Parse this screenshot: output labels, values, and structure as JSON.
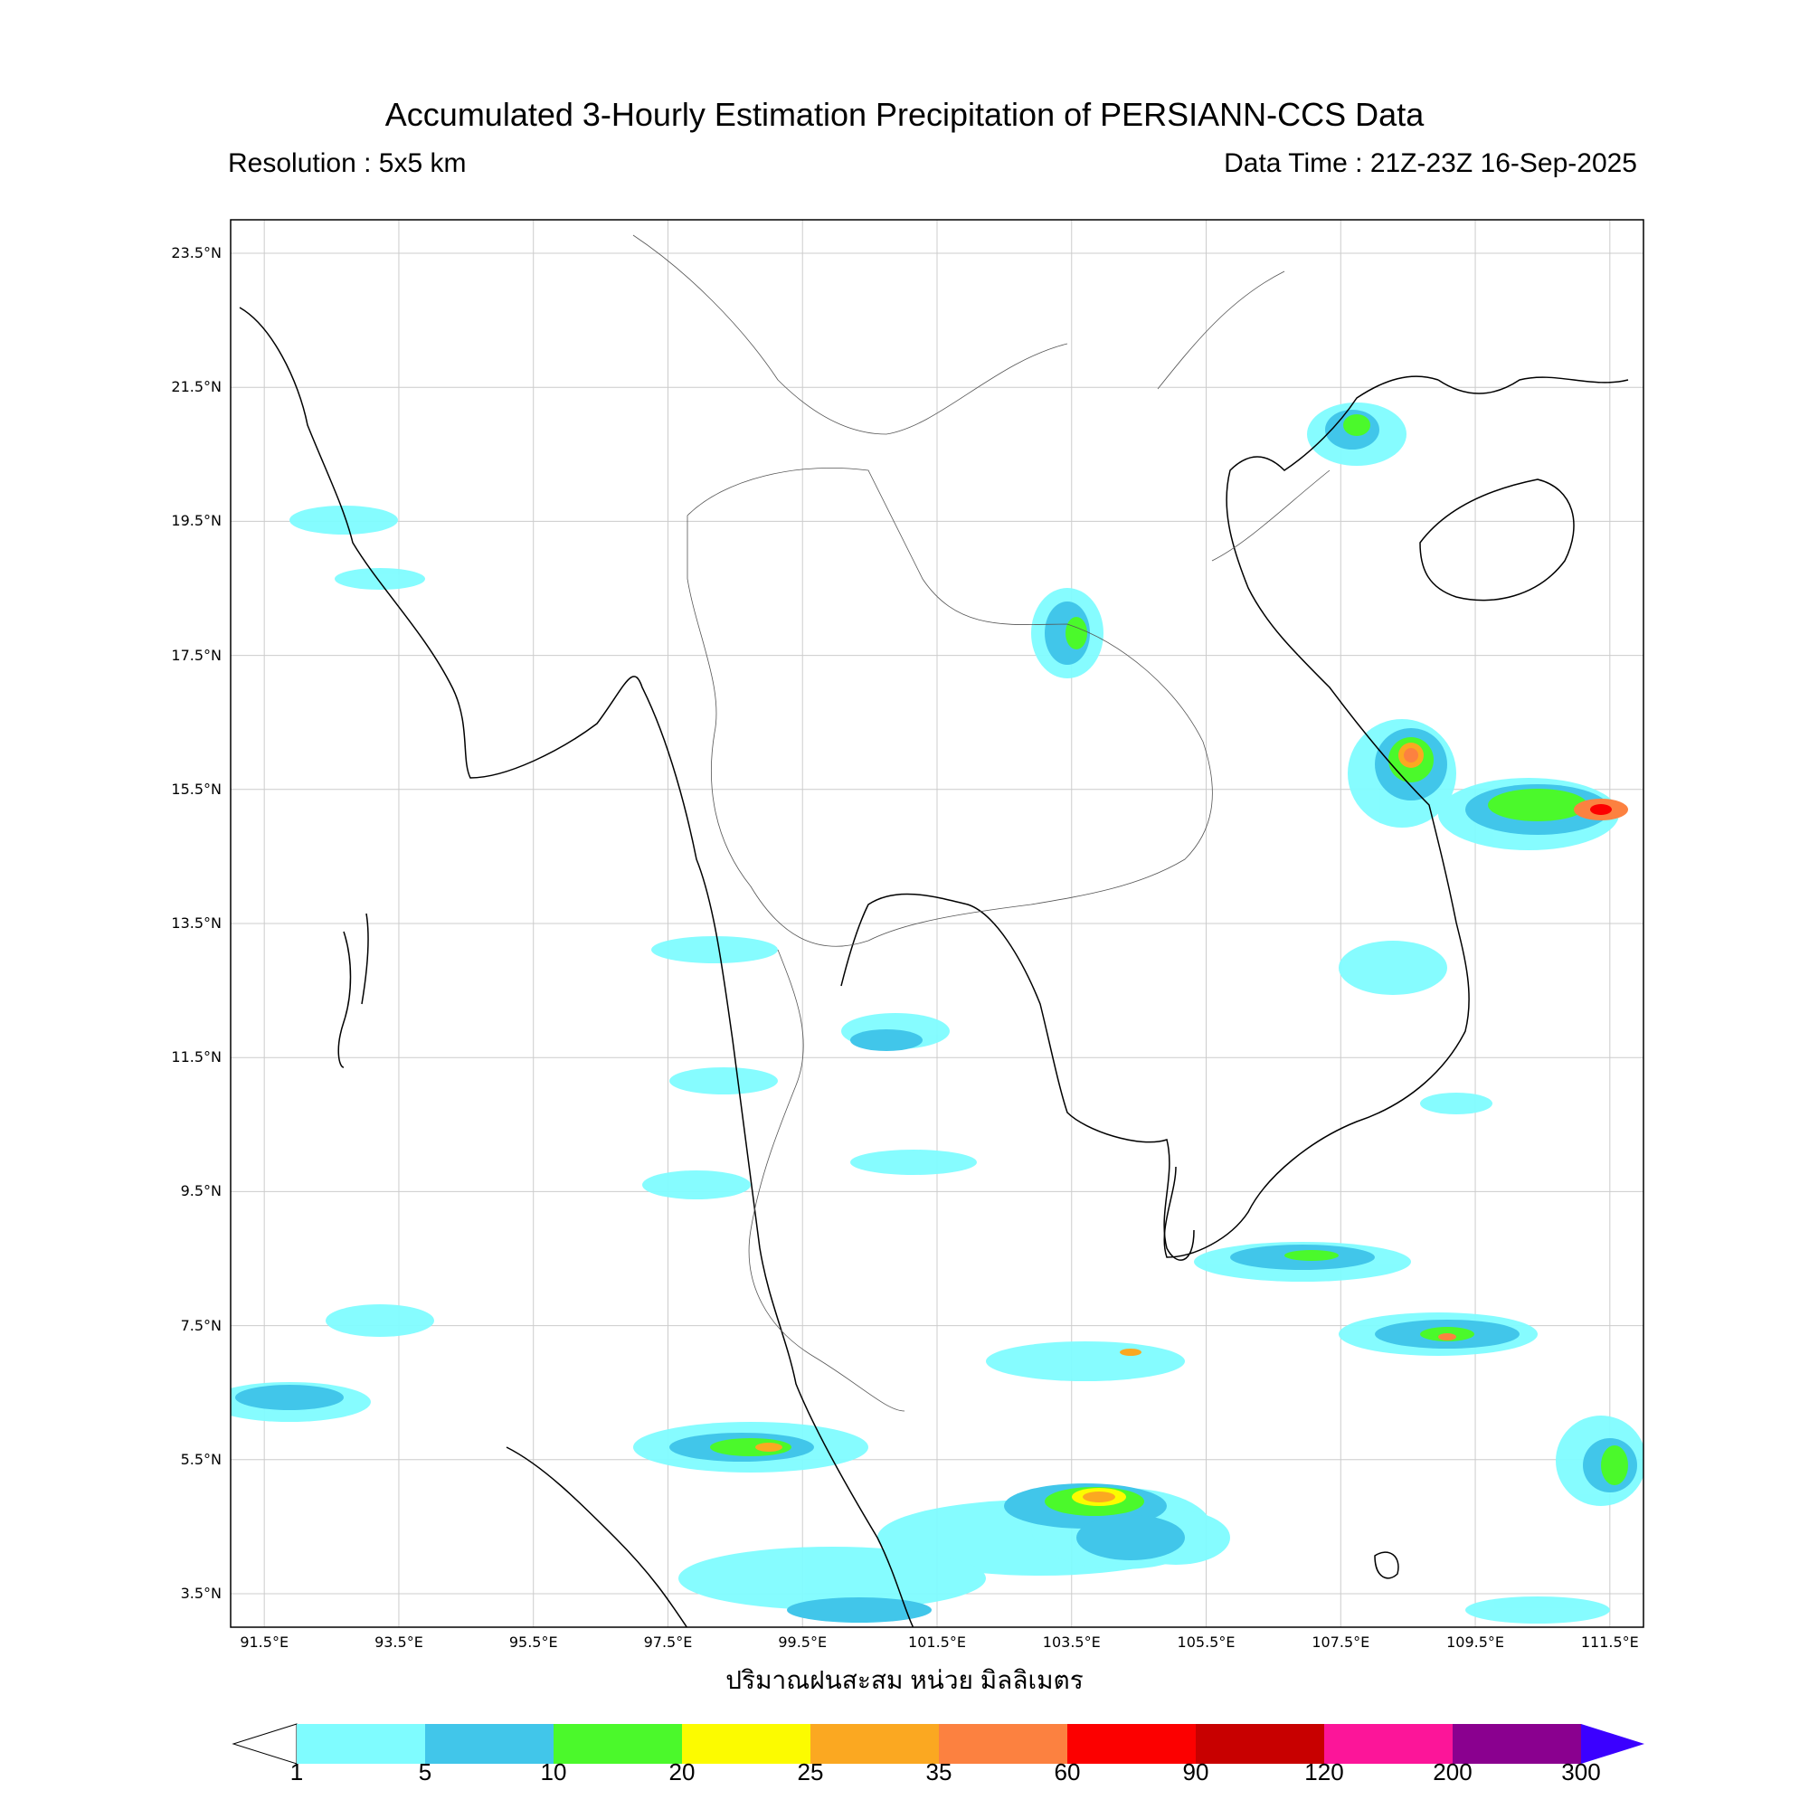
{
  "header": {
    "title": "Accumulated 3-Hourly Estimation Precipitation of PERSIANN-CCS Data",
    "resolution": "Resolution : 5x5 km",
    "data_time": "Data Time : 21Z-23Z 16-Sep-2025"
  },
  "axes": {
    "lat_ticks": [
      "23.5°N",
      "21.5°N",
      "19.5°N",
      "17.5°N",
      "15.5°N",
      "13.5°N",
      "11.5°N",
      "9.5°N",
      "7.5°N",
      "5.5°N",
      "3.5°N"
    ],
    "lon_ticks": [
      "91.5°E",
      "93.5°E",
      "95.5°E",
      "97.5°E",
      "99.5°E",
      "101.5°E",
      "103.5°E",
      "105.5°E",
      "107.5°E",
      "109.5°E",
      "111.5°E"
    ],
    "xlabel": "ปริมาณฝนสะสม หน่วย มิลลิเมตร"
  },
  "colorbar": {
    "labels": [
      "1",
      "5",
      "10",
      "20",
      "25",
      "35",
      "60",
      "90",
      "120",
      "200",
      "300"
    ],
    "colors": [
      "#7ffcff",
      "#41c6ea",
      "#4bf92b",
      "#fcfb00",
      "#fba821",
      "#fc8140",
      "#fc0000",
      "#c80000",
      "#fc1599",
      "#8a008f"
    ],
    "over_color": "#3b00ff",
    "under_color": "#ffffff"
  },
  "map": {
    "region": "Southeast Asia / Thailand",
    "lon_range": [
      91.0,
      112.0
    ],
    "lat_range": [
      3.0,
      24.0
    ],
    "grid": true
  }
}
